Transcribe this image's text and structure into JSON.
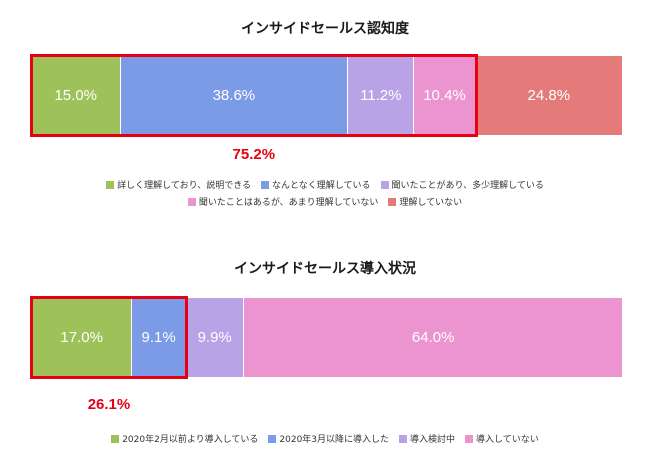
{
  "chart_data": [
    {
      "type": "bar",
      "orientation": "horizontal-stacked-100",
      "title": "インサイドセールス認知度",
      "series": [
        {
          "name": "詳しく理解しており、説明できる",
          "value": 15.0,
          "label": "15.0%",
          "color": "#9ec15a"
        },
        {
          "name": "なんとなく理解している",
          "value": 38.6,
          "label": "38.6%",
          "color": "#7b9be6"
        },
        {
          "name": "聞いたことがあり、多少理解している",
          "value": 11.2,
          "label": "11.2%",
          "color": "#b9a2e6"
        },
        {
          "name": "聞いたことはあるが、あまり理解していない",
          "value": 10.4,
          "label": "10.4%",
          "color": "#ec94cf"
        },
        {
          "name": "理解していない",
          "value": 24.8,
          "label": "24.8%",
          "color": "#e57a7a"
        }
      ],
      "highlight": {
        "count": 4,
        "label": "75.2%"
      },
      "legend_rows": [
        [
          0,
          1,
          2
        ],
        [
          3,
          4
        ]
      ]
    },
    {
      "type": "bar",
      "orientation": "horizontal-stacked-100",
      "title": "インサイドセールス導入状況",
      "series": [
        {
          "name": "2020年2月以前より導入している",
          "value": 17.0,
          "label": "17.0%",
          "color": "#9ec15a"
        },
        {
          "name": "2020年3月以降に導入した",
          "value": 9.1,
          "label": "9.1%",
          "color": "#7b9be6"
        },
        {
          "name": "導入検討中",
          "value": 9.9,
          "label": "9.9%",
          "color": "#b9a2e6"
        },
        {
          "name": "導入していない",
          "value": 64.0,
          "label": "64.0%",
          "color": "#ec94cf"
        }
      ],
      "highlight": {
        "count": 2,
        "label": "26.1%"
      },
      "legend_rows": [
        [
          0,
          1,
          2,
          3
        ]
      ]
    }
  ]
}
